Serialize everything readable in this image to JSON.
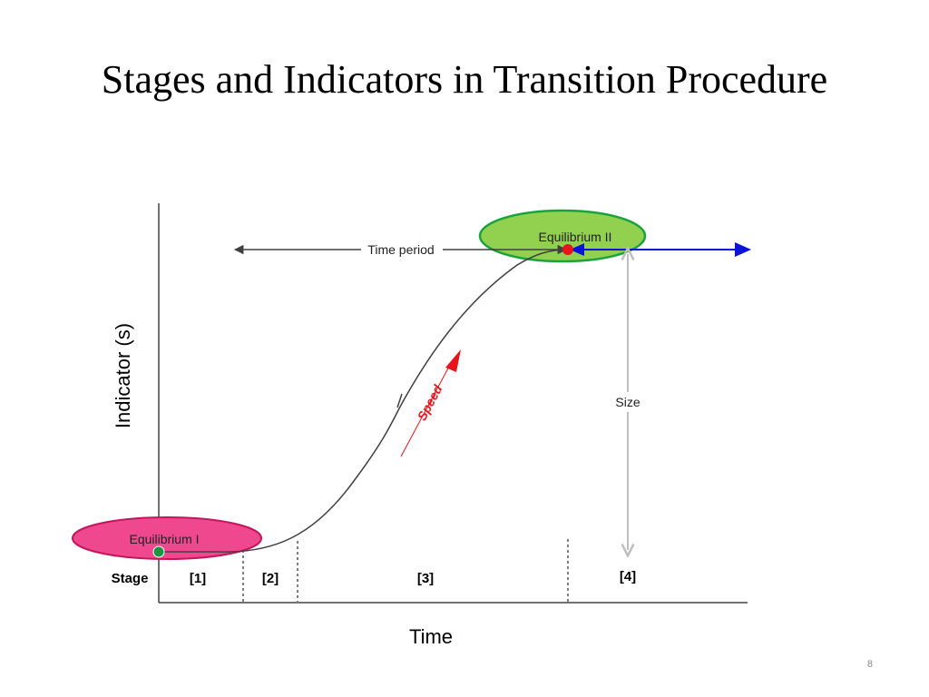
{
  "slide": {
    "title": "Stages and Indicators in Transition Procedure",
    "page_number": "8"
  },
  "diagram": {
    "y_axis_label": "Indicator (s)",
    "x_axis_label": "Time",
    "stage_label": "Stage",
    "stages": [
      "[1]",
      "[2]",
      "[3]",
      "[4]"
    ],
    "equilibrium_1": "Equilibrium I",
    "equilibrium_2": "Equilibrium II",
    "time_period_label": "Time period",
    "speed_label": "Speed",
    "size_label": "Size"
  },
  "colors": {
    "equilibrium_1_fill": "#f0488e",
    "equilibrium_1_stroke": "#c2185b",
    "equilibrium_2_fill": "#92d050",
    "equilibrium_2_stroke": "#1aa33b",
    "start_point": "#1a9641",
    "end_point": "#e8141c",
    "speed_arrow": "#e8141c",
    "extension_arrow": "#0a14d8",
    "size_arrow": "#bfbfbf",
    "curve": "#404040",
    "axis": "#404040"
  }
}
